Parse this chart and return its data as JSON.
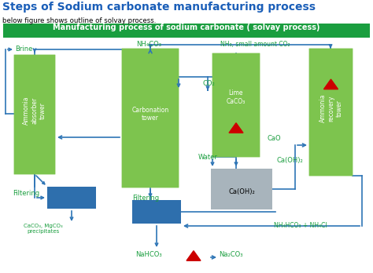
{
  "title": "Steps of Sodium carbonate manufacturing process",
  "subtitle": "below figure shows outline of solvay process.",
  "banner_text": "Manufacturing process of sodium carbonate ( solvay process)",
  "banner_color": "#1a9e3f",
  "bg_color": "#ffffff",
  "title_color": "#1a5eb8",
  "green_box_color": "#7dc44e",
  "blue_box_color": "#2e6fad",
  "gray_box_color": "#a8b4bc",
  "arrow_color": "#2e75b6",
  "text_green": "#1a9e3f",
  "text_blue": "#2e75b6"
}
